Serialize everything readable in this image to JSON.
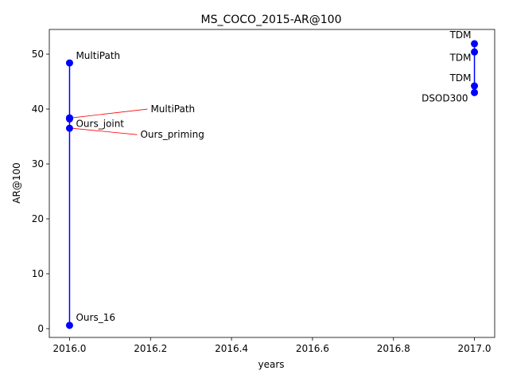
{
  "chart_data": {
    "type": "scatter",
    "title": "MS_COCO_2015-AR@100",
    "xlabel": "years",
    "ylabel": "AR@100",
    "xlim": [
      2015.95,
      2017.05
    ],
    "ylim": [
      -1.6,
      54.5
    ],
    "xticks": [
      2016.0,
      2016.2,
      2016.4,
      2016.6,
      2016.8,
      2017.0
    ],
    "xtick_labels": [
      "2016.0",
      "2016.2",
      "2016.4",
      "2016.6",
      "2016.8",
      "2017.0"
    ],
    "yticks": [
      0,
      10,
      20,
      30,
      40,
      50
    ],
    "ytick_labels": [
      "0",
      "10",
      "20",
      "30",
      "40",
      "50"
    ],
    "grid": false,
    "line_color": "#0000ff",
    "marker_color": "#0000ff",
    "annotation_line_color": "#ff0000",
    "segments": [
      {
        "x": 2016.0,
        "y": [
          0.6,
          48.4
        ]
      },
      {
        "x": 2017.0,
        "y": [
          43.0,
          51.9
        ]
      }
    ],
    "points": [
      {
        "x": 2016.0,
        "y": 48.4,
        "label": "MultiPath"
      },
      {
        "x": 2016.0,
        "y": 38.4,
        "label": "MultiPath"
      },
      {
        "x": 2016.0,
        "y": 38.2,
        "label": "Ours_joint"
      },
      {
        "x": 2016.0,
        "y": 36.5,
        "label": "Ours_priming"
      },
      {
        "x": 2016.0,
        "y": 0.6,
        "label": "Ours_16"
      },
      {
        "x": 2017.0,
        "y": 51.9,
        "label": "TDM"
      },
      {
        "x": 2017.0,
        "y": 50.4,
        "label": "TDM"
      },
      {
        "x": 2017.0,
        "y": 44.2,
        "label": "TDM"
      },
      {
        "x": 2017.0,
        "y": 43.0,
        "label": "DSOD300"
      }
    ]
  }
}
